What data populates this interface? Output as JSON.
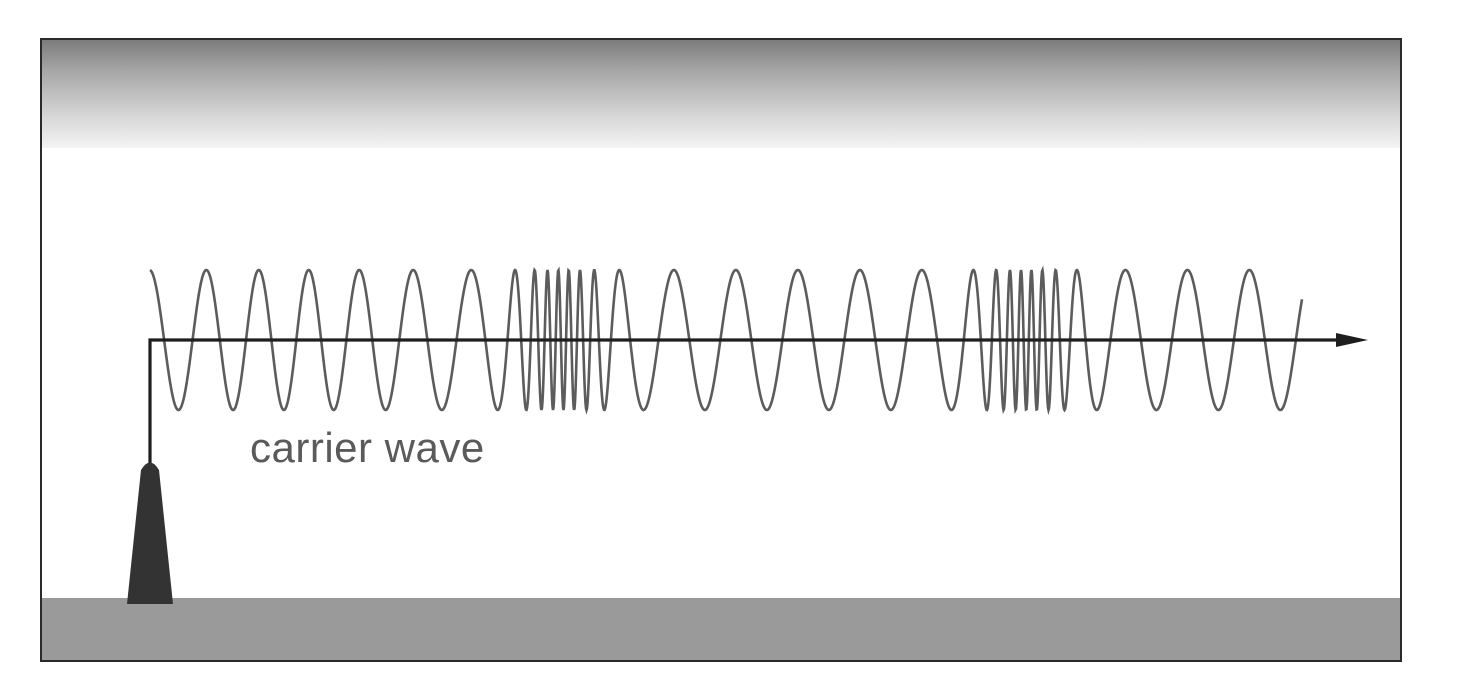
{
  "diagram": {
    "label": "carrier wave",
    "colors": {
      "wave": "#5c5c5c",
      "axis": "#1e1e1e",
      "antenna": "#333333",
      "ground": "#9a9a9a",
      "border": "#2a2a2a"
    }
  }
}
